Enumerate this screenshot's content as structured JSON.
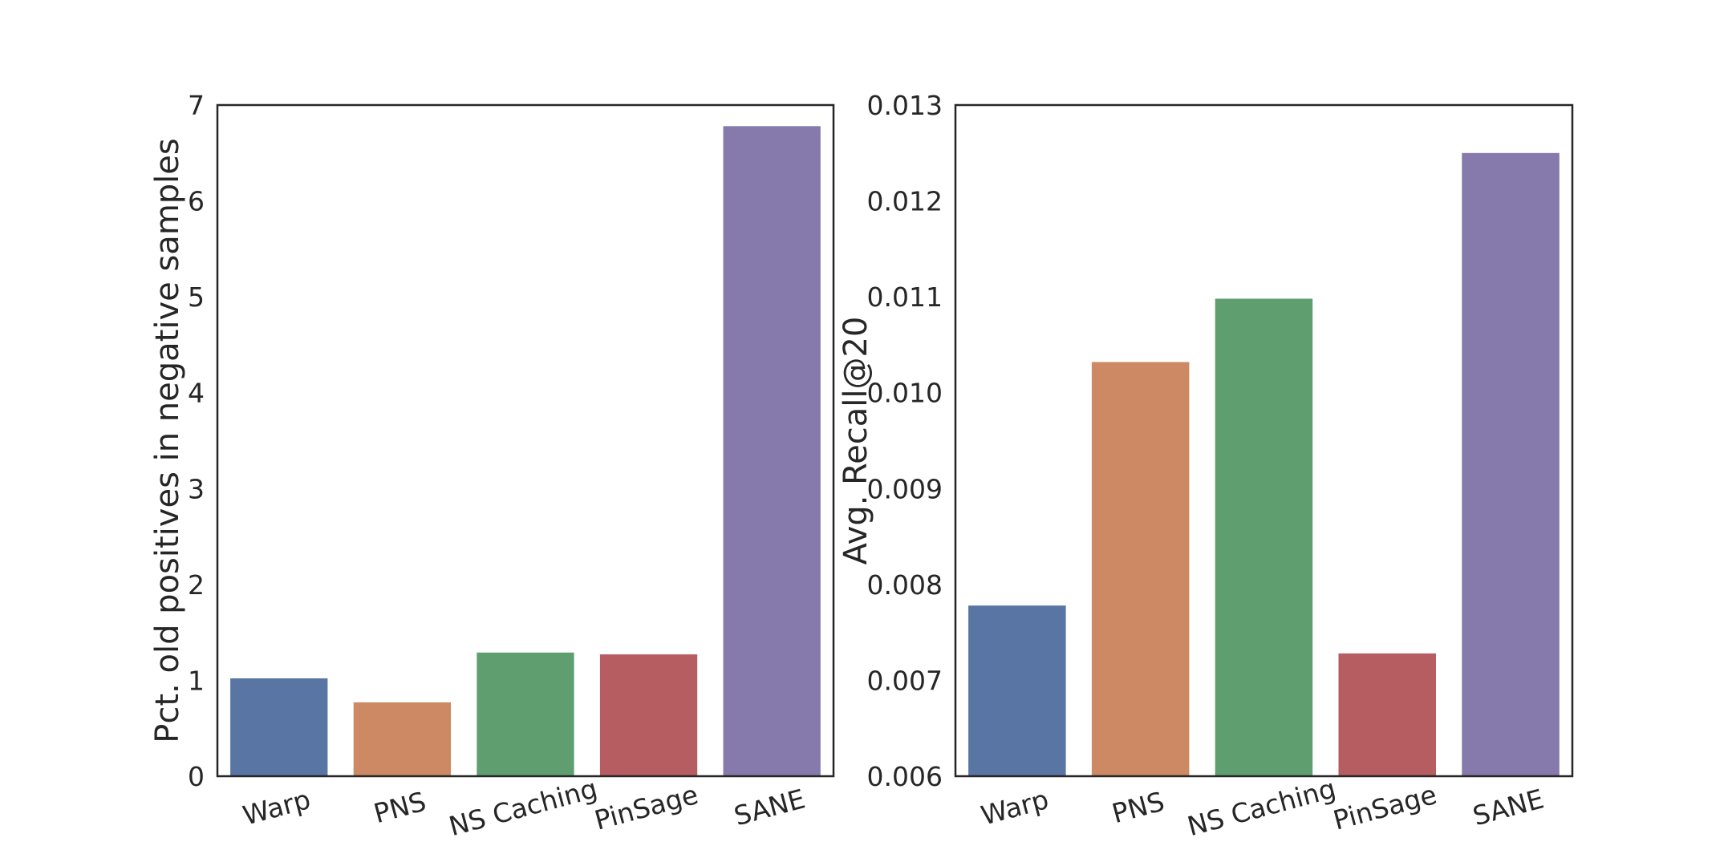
{
  "chart_data": [
    {
      "type": "bar",
      "categories": [
        "Warp",
        "PNS",
        "NS Caching",
        "PinSage",
        "SANE"
      ],
      "values": [
        1.02,
        0.77,
        1.29,
        1.27,
        6.78
      ],
      "colors": [
        "#5875a4",
        "#cc8963",
        "#5f9e6e",
        "#b55d60",
        "#857aab"
      ],
      "title": "",
      "xlabel": "",
      "ylabel": "Pct. old positives in negative samples",
      "ylim": [
        0,
        7
      ],
      "yticks": [
        "0",
        "1",
        "2",
        "3",
        "4",
        "5",
        "6",
        "7"
      ],
      "grid": false
    },
    {
      "type": "bar",
      "categories": [
        "Warp",
        "PNS",
        "NS Caching",
        "PinSage",
        "SANE"
      ],
      "values": [
        0.00778,
        0.01032,
        0.01098,
        0.00728,
        0.0125
      ],
      "colors": [
        "#5875a4",
        "#cc8963",
        "#5f9e6e",
        "#b55d60",
        "#857aab"
      ],
      "title": "",
      "xlabel": "",
      "ylabel": "Avg. Recall@20",
      "ylim": [
        0.006,
        0.013
      ],
      "yticks": [
        "0.006",
        "0.007",
        "0.008",
        "0.009",
        "0.010",
        "0.011",
        "0.012",
        "0.013"
      ],
      "grid": false
    }
  ]
}
